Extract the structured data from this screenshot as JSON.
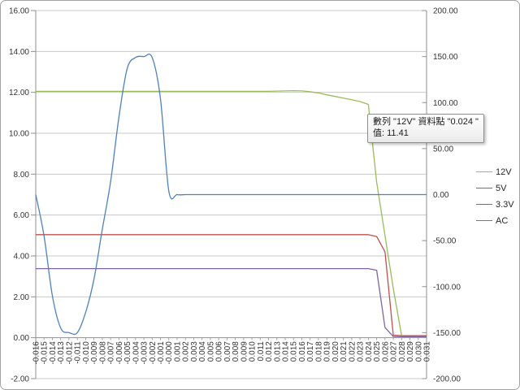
{
  "window": {
    "background": "#ffffff",
    "border_color": "#a3a3a3"
  },
  "tooltip": {
    "line1": "數列 \"12V\" 資料點 \"0.024 \"",
    "line2": "值: 11.41"
  },
  "colors": {
    "grid": "#c8c8c8",
    "axis": "#8f8f8f",
    "tick_text": "#333333",
    "series_12v": "#9BBB59",
    "series_5v": "#C0504D",
    "series_3v3": "#8064A2",
    "series_ac": "#4F81BD"
  },
  "chart_data": {
    "type": "line",
    "title": "",
    "xlabel": "",
    "ylabel": "",
    "grid": "horizontal",
    "legend_position": "right",
    "categories": [
      "-0.016",
      "-0.015",
      "-0.014",
      "-0.013",
      "-0.012",
      "-0.011",
      "-0.010",
      "-0.009",
      "-0.008",
      "-0.007",
      "-0.006",
      "-0.005",
      "-0.004",
      "-0.003",
      "-0.002",
      "-0.001",
      "-0.000",
      "0.001",
      "0.002",
      "0.003",
      "0.004",
      "0.005",
      "0.006",
      "0.007",
      "0.008",
      "0.009",
      "0.010",
      "0.011",
      "0.012",
      "0.013",
      "0.014",
      "0.015",
      "0.016",
      "0.017",
      "0.018",
      "0.019",
      "0.020",
      "0.021",
      "0.022",
      "0.023",
      "0.024",
      "0.025",
      "0.026",
      "0.027",
      "0.028",
      "0.029",
      "0.030",
      "0.031"
    ],
    "left_axis": {
      "min": -2,
      "max": 16,
      "step": 2,
      "tick_labels": [
        "16.00",
        "14.00",
        "12.00",
        "10.00",
        "8.00",
        "6.00",
        "4.00",
        "2.00",
        "0.00",
        "-2.00"
      ]
    },
    "right_axis": {
      "min": -200,
      "max": 200,
      "step": 50,
      "tick_labels": [
        "200.00",
        "150.00",
        "100.00",
        "50.00",
        "0.00",
        "-50.00",
        "-100.00",
        "-150.00",
        "-200.00"
      ]
    },
    "series": [
      {
        "name": "12V",
        "axis": "left",
        "color": "#9BBB59",
        "smooth": false,
        "values": [
          12.05,
          12.05,
          12.05,
          12.05,
          12.05,
          12.05,
          12.05,
          12.05,
          12.05,
          12.05,
          12.05,
          12.05,
          12.05,
          12.05,
          12.05,
          12.05,
          12.05,
          12.05,
          12.05,
          12.05,
          12.05,
          12.05,
          12.05,
          12.05,
          12.05,
          12.05,
          12.05,
          12.05,
          12.05,
          12.06,
          12.07,
          12.08,
          12.07,
          12.03,
          11.97,
          11.88,
          11.8,
          11.72,
          11.64,
          11.55,
          11.41,
          7.6,
          5.0,
          2.4,
          0.1,
          0.07,
          0.07,
          0.07
        ]
      },
      {
        "name": "5V",
        "axis": "left",
        "color": "#C0504D",
        "smooth": false,
        "values": [
          5.04,
          5.04,
          5.04,
          5.04,
          5.04,
          5.04,
          5.04,
          5.04,
          5.04,
          5.04,
          5.04,
          5.04,
          5.04,
          5.04,
          5.04,
          5.04,
          5.04,
          5.04,
          5.04,
          5.04,
          5.04,
          5.04,
          5.04,
          5.04,
          5.04,
          5.04,
          5.04,
          5.04,
          5.04,
          5.04,
          5.04,
          5.04,
          5.04,
          5.04,
          5.04,
          5.04,
          5.04,
          5.04,
          5.04,
          5.04,
          5.04,
          4.95,
          4.2,
          0.12,
          0.1,
          0.1,
          0.1,
          0.1
        ]
      },
      {
        "name": "3.3V",
        "axis": "left",
        "color": "#8064A2",
        "smooth": false,
        "values": [
          3.38,
          3.38,
          3.38,
          3.38,
          3.38,
          3.38,
          3.38,
          3.38,
          3.38,
          3.38,
          3.38,
          3.38,
          3.38,
          3.38,
          3.38,
          3.38,
          3.38,
          3.38,
          3.38,
          3.38,
          3.38,
          3.38,
          3.38,
          3.38,
          3.38,
          3.38,
          3.38,
          3.38,
          3.38,
          3.38,
          3.38,
          3.38,
          3.38,
          3.38,
          3.38,
          3.38,
          3.38,
          3.38,
          3.38,
          3.38,
          3.38,
          3.3,
          0.5,
          0.06,
          0.05,
          0.05,
          0.05,
          0.05
        ]
      },
      {
        "name": "AC",
        "axis": "right",
        "color": "#4F81BD",
        "smooth": true,
        "values": [
          0,
          -45,
          -110,
          -145,
          -150,
          -150,
          -128,
          -92,
          -38,
          14,
          84,
          137,
          149,
          150,
          149,
          104,
          4,
          0,
          0,
          0,
          0,
          0,
          0,
          0,
          0,
          0,
          0,
          0,
          0,
          0,
          0,
          0,
          0,
          0,
          0,
          0,
          0,
          0,
          0,
          0,
          0,
          0,
          0,
          0,
          0,
          0,
          0,
          0
        ]
      }
    ]
  }
}
